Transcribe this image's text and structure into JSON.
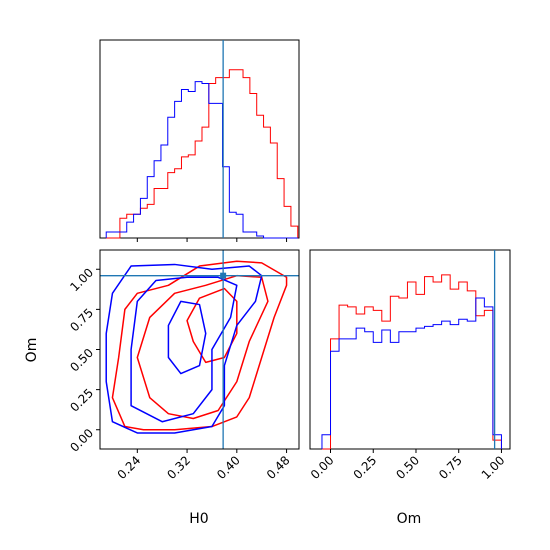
{
  "colors": {
    "series_a": "#ff0000",
    "series_b": "#0000ff",
    "truth": "#1f77b4",
    "axis": "#000000",
    "background": "#ffffff"
  },
  "chart_data": [
    {
      "type": "histogram",
      "panel": "H0 marginal (top-left)",
      "xlim": [
        0.18,
        0.5
      ],
      "bin_edges": [
        0.19,
        0.201,
        0.212,
        0.223,
        0.234,
        0.245,
        0.256,
        0.267,
        0.278,
        0.289,
        0.3,
        0.311,
        0.322,
        0.333,
        0.344,
        0.355,
        0.366,
        0.377,
        0.388,
        0.399,
        0.41,
        0.421,
        0.432,
        0.443,
        0.454,
        0.465,
        0.476,
        0.487,
        0.498
      ],
      "series": [
        {
          "color": "red",
          "values": [
            0,
            0,
            0.1,
            0.12,
            0.12,
            0.15,
            0.17,
            0.25,
            0.25,
            0.33,
            0.35,
            0.41,
            0.42,
            0.49,
            0.56,
            0.78,
            0.81,
            0.81,
            0.85,
            0.85,
            0.81,
            0.73,
            0.62,
            0.56,
            0.48,
            0.3,
            0.16,
            0.06
          ]
        },
        {
          "color": "blue",
          "values": [
            0.03,
            0.03,
            0.03,
            0.08,
            0.12,
            0.2,
            0.31,
            0.39,
            0.47,
            0.61,
            0.69,
            0.75,
            0.74,
            0.79,
            0.78,
            0.68,
            0.68,
            0.36,
            0.13,
            0.12,
            0.03,
            0.03,
            0.01,
            0,
            0,
            0,
            0,
            0
          ]
        }
      ],
      "truth_x": 0.378,
      "xticks": [
        "0.24",
        "0.32",
        "0.40",
        "0.48"
      ]
    },
    {
      "type": "contour",
      "panel": "H0 vs Om joint (bottom-left)",
      "xlabel": "H0",
      "ylabel": "Om",
      "xlim": [
        0.18,
        0.5
      ],
      "ylim": [
        -0.12,
        1.12
      ],
      "xticks": [
        "0.24",
        "0.32",
        "0.40",
        "0.48"
      ],
      "yticks": [
        "0.00",
        "0.25",
        "0.50",
        "0.75",
        "1.00"
      ],
      "truth": [
        0.378,
        0.96
      ],
      "series": [
        {
          "color": "red",
          "contours": [
            [
              [
                0.22,
                0.02
              ],
              [
                0.2,
                0.2
              ],
              [
                0.21,
                0.45
              ],
              [
                0.22,
                0.75
              ],
              [
                0.24,
                0.85
              ],
              [
                0.29,
                0.9
              ],
              [
                0.34,
                1.02
              ],
              [
                0.4,
                1.05
              ],
              [
                0.44,
                1.04
              ],
              [
                0.48,
                0.95
              ],
              [
                0.48,
                0.9
              ],
              [
                0.46,
                0.7
              ],
              [
                0.44,
                0.45
              ],
              [
                0.42,
                0.2
              ],
              [
                0.4,
                0.08
              ],
              [
                0.36,
                0.02
              ],
              [
                0.3,
                0.0
              ],
              [
                0.25,
                0.0
              ]
            ],
            [
              [
                0.26,
                0.2
              ],
              [
                0.24,
                0.45
              ],
              [
                0.26,
                0.7
              ],
              [
                0.3,
                0.85
              ],
              [
                0.35,
                0.9
              ],
              [
                0.4,
                0.96
              ],
              [
                0.44,
                0.95
              ],
              [
                0.45,
                0.8
              ],
              [
                0.42,
                0.55
              ],
              [
                0.4,
                0.3
              ],
              [
                0.37,
                0.12
              ],
              [
                0.33,
                0.07
              ],
              [
                0.29,
                0.1
              ]
            ],
            [
              [
                0.33,
                0.55
              ],
              [
                0.32,
                0.68
              ],
              [
                0.34,
                0.82
              ],
              [
                0.38,
                0.88
              ],
              [
                0.4,
                0.8
              ],
              [
                0.4,
                0.6
              ],
              [
                0.38,
                0.45
              ],
              [
                0.35,
                0.42
              ]
            ]
          ]
        },
        {
          "color": "blue",
          "contours": [
            [
              [
                0.2,
                0.05
              ],
              [
                0.19,
                0.3
              ],
              [
                0.19,
                0.6
              ],
              [
                0.2,
                0.85
              ],
              [
                0.23,
                1.02
              ],
              [
                0.3,
                1.03
              ],
              [
                0.36,
                1.0
              ],
              [
                0.42,
                1.02
              ],
              [
                0.44,
                0.96
              ],
              [
                0.43,
                0.8
              ],
              [
                0.4,
                0.65
              ],
              [
                0.38,
                0.4
              ],
              [
                0.38,
                0.15
              ],
              [
                0.36,
                0.02
              ],
              [
                0.3,
                -0.02
              ],
              [
                0.24,
                -0.02
              ]
            ],
            [
              [
                0.23,
                0.15
              ],
              [
                0.23,
                0.5
              ],
              [
                0.24,
                0.8
              ],
              [
                0.27,
                0.93
              ],
              [
                0.32,
                0.95
              ],
              [
                0.37,
                0.95
              ],
              [
                0.4,
                0.9
              ],
              [
                0.39,
                0.7
              ],
              [
                0.36,
                0.5
              ],
              [
                0.36,
                0.25
              ],
              [
                0.33,
                0.1
              ],
              [
                0.28,
                0.05
              ]
            ],
            [
              [
                0.29,
                0.45
              ],
              [
                0.29,
                0.65
              ],
              [
                0.31,
                0.8
              ],
              [
                0.34,
                0.78
              ],
              [
                0.35,
                0.6
              ],
              [
                0.34,
                0.4
              ],
              [
                0.31,
                0.35
              ]
            ]
          ]
        }
      ]
    },
    {
      "type": "histogram",
      "panel": "Om marginal (bottom-right)",
      "xlabel": "Om",
      "xlim": [
        -0.12,
        1.05
      ],
      "xticks": [
        "0.00",
        "0.25",
        "0.50",
        "0.75",
        "1.00"
      ],
      "truth_x": 0.96,
      "bin_edges": [
        -0.05,
        0.0,
        0.05,
        0.1,
        0.15,
        0.2,
        0.25,
        0.3,
        0.35,
        0.4,
        0.45,
        0.5,
        0.55,
        0.6,
        0.65,
        0.7,
        0.75,
        0.8,
        0.85,
        0.9,
        0.95,
        1.0
      ],
      "series": [
        {
          "color": "red",
          "values": [
            0,
            0.62,
            0.81,
            0.8,
            0.76,
            0.8,
            0.78,
            0.72,
            0.86,
            0.85,
            0.94,
            0.87,
            0.97,
            0.94,
            0.98,
            0.9,
            0.94,
            0.89,
            0.75,
            0.78,
            0.05
          ]
        },
        {
          "color": "blue",
          "values": [
            0.08,
            0.55,
            0.62,
            0.62,
            0.68,
            0.66,
            0.6,
            0.67,
            0.6,
            0.66,
            0.66,
            0.68,
            0.69,
            0.7,
            0.72,
            0.7,
            0.73,
            0.72,
            0.85,
            0.8,
            0.08
          ]
        }
      ]
    }
  ]
}
